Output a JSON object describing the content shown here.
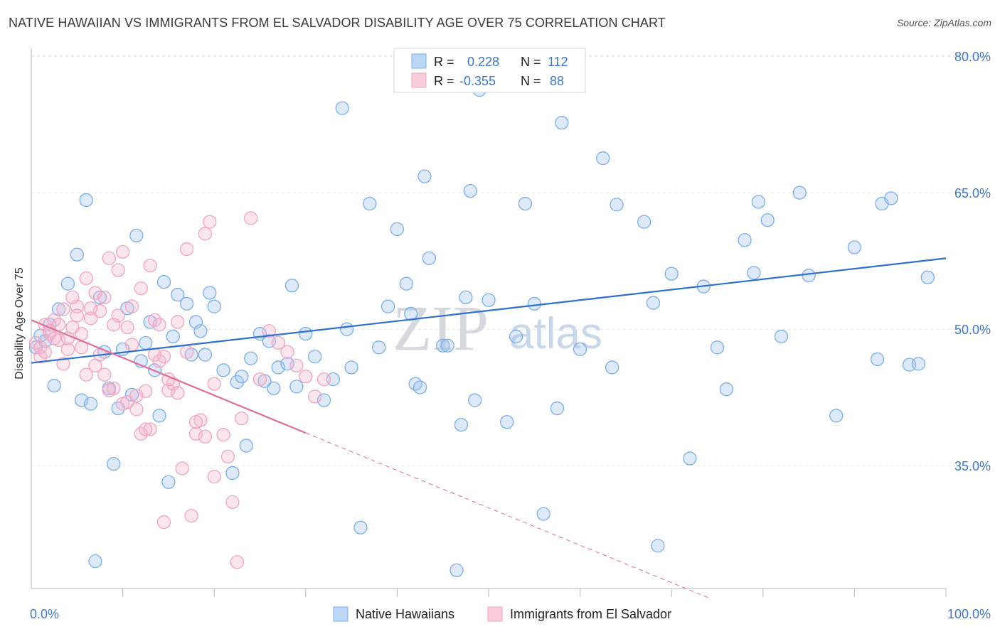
{
  "title": "NATIVE HAWAIIAN VS IMMIGRANTS FROM EL SALVADOR DISABILITY AGE OVER 75 CORRELATION CHART",
  "source": "Source: ZipAtlas.com",
  "watermark": {
    "zip": "ZIP",
    "atlas": "atlas"
  },
  "colors": {
    "blue": "#7aaee8",
    "pink": "#f2a3bf",
    "blue_line": "#2f6fce",
    "pink_line": "#e06c98",
    "axis_text": "#3f78c9",
    "grid": "#e3e6ea"
  },
  "legend_box": {
    "rows": [
      {
        "r_label": "R =",
        "r_value": "0.228",
        "n_label": "N =",
        "n_value": "112"
      },
      {
        "r_label": "R =",
        "r_value": "-0.355",
        "n_label": "N =",
        "n_value": "88"
      }
    ]
  },
  "bottom_legend": [
    "Native Hawaiians",
    "Immigrants from El Salvador"
  ],
  "chart_data": {
    "type": "scatter",
    "xlabel": "",
    "ylabel": "Disability Age Over 75",
    "xlim": [
      0,
      100
    ],
    "ylim": [
      21.5,
      81.5
    ],
    "y_ticks": [
      35.0,
      50.0,
      65.0,
      80.0
    ],
    "y_tick_labels": [
      "35.0%",
      "50.0%",
      "65.0%",
      "80.0%"
    ],
    "x_tick_labels": [
      "0.0%",
      "100.0%"
    ],
    "grid": true,
    "series": [
      {
        "name": "Native Hawaiians",
        "color": "#7aaee8",
        "trend": {
          "x": [
            0,
            100
          ],
          "y": [
            46.3,
            57.8
          ]
        },
        "x": [
          0.5,
          1.0,
          1.5,
          2.0,
          2.5,
          3.0,
          4.0,
          5.0,
          5.5,
          6.0,
          6.5,
          7.0,
          7.5,
          8.0,
          8.5,
          9.0,
          9.5,
          10.0,
          10.5,
          11.0,
          11.5,
          12.0,
          12.5,
          13.0,
          13.5,
          14.0,
          14.5,
          15.0,
          15.5,
          16.0,
          17.0,
          17.5,
          18.0,
          18.5,
          19.0,
          19.5,
          20.0,
          21.0,
          22.0,
          22.5,
          23.0,
          23.5,
          24.0,
          25.0,
          25.5,
          26.0,
          26.5,
          27.0,
          28.0,
          28.5,
          29.0,
          30.0,
          31.0,
          32.0,
          33.0,
          34.0,
          34.5,
          35.0,
          36.0,
          37.0,
          38.0,
          39.0,
          40.0,
          41.0,
          41.5,
          42.0,
          42.5,
          43.0,
          43.5,
          45.0,
          45.5,
          46.5,
          47.0,
          47.5,
          48.0,
          48.5,
          49.0,
          50.0,
          52.0,
          53.0,
          54.0,
          55.0,
          56.0,
          57.5,
          58.0,
          60.0,
          62.5,
          63.5,
          64.0,
          67.0,
          68.0,
          68.5,
          70.0,
          72.0,
          73.5,
          75.0,
          76.0,
          78.0,
          79.0,
          79.5,
          80.5,
          82.0,
          84.0,
          85.0,
          88.0,
          90.0,
          92.5,
          93.0,
          94.0,
          96.0,
          97.0,
          98.0
        ],
        "y": [
          48.0,
          49.3,
          48.7,
          50.5,
          43.8,
          52.2,
          55.0,
          58.2,
          42.2,
          64.2,
          41.8,
          24.5,
          53.5,
          47.5,
          43.5,
          35.2,
          41.3,
          47.8,
          52.3,
          42.8,
          60.3,
          46.5,
          48.5,
          50.8,
          45.5,
          40.5,
          55.2,
          33.2,
          49.2,
          53.8,
          52.8,
          47.2,
          50.8,
          49.8,
          47.2,
          54.0,
          52.5,
          45.5,
          34.2,
          44.2,
          44.8,
          37.2,
          46.8,
          49.5,
          44.3,
          48.7,
          43.5,
          45.8,
          46.2,
          54.8,
          43.7,
          49.5,
          47.0,
          42.2,
          44.5,
          74.3,
          50.0,
          45.8,
          28.2,
          63.8,
          48.0,
          52.5,
          61.0,
          55.0,
          51.7,
          44.0,
          43.6,
          66.8,
          57.8,
          48.2,
          48.2,
          23.5,
          39.5,
          53.5,
          65.2,
          42.2,
          76.3,
          53.2,
          39.8,
          49.2,
          63.8,
          52.8,
          29.7,
          41.3,
          72.7,
          47.8,
          68.8,
          45.8,
          63.7,
          61.8,
          52.9,
          26.2,
          56.1,
          35.8,
          54.7,
          48.0,
          43.4,
          59.8,
          56.2,
          64.0,
          62.0,
          49.2,
          65.0,
          55.9,
          40.5,
          59.0,
          46.7,
          63.8,
          64.4,
          46.1,
          46.2,
          55.7
        ]
      },
      {
        "name": "Immigrants from El Salvador",
        "color": "#f2a3bf",
        "trend": {
          "x": [
            0,
            30
          ],
          "y": [
            51.0,
            38.6
          ]
        },
        "trend_dashed": {
          "x": [
            30,
            74
          ],
          "y": [
            38.6,
            20.5
          ]
        },
        "x": [
          0.5,
          1.0,
          1.5,
          2.0,
          2.5,
          3.0,
          3.5,
          4.0,
          4.5,
          5.0,
          5.5,
          6.0,
          6.5,
          7.0,
          7.5,
          8.0,
          8.5,
          9.0,
          9.5,
          10.0,
          10.5,
          11.0,
          11.5,
          12.0,
          12.5,
          13.0,
          13.5,
          14.0,
          14.5,
          15.0,
          15.5,
          16.0,
          16.5,
          17.0,
          17.5,
          18.0,
          18.5,
          19.0,
          19.5,
          20.0,
          21.0,
          21.5,
          22.0,
          22.5,
          23.0,
          24.0,
          25.0,
          26.0,
          27.0,
          28.0,
          29.0,
          30.0,
          31.0,
          32.0,
          1.0,
          2.0,
          3.0,
          4.0,
          5.0,
          6.0,
          7.0,
          8.0,
          9.0,
          10.0,
          11.0,
          12.0,
          13.0,
          14.0,
          15.0,
          16.0,
          17.0,
          18.0,
          19.0,
          20.0,
          1.5,
          2.5,
          3.5,
          4.5,
          5.5,
          6.5,
          7.5,
          8.5,
          9.5,
          10.5,
          11.5,
          12.5,
          13.5,
          14.5
        ],
        "y": [
          48.5,
          47.0,
          50.5,
          49.5,
          51.0,
          48.8,
          52.2,
          47.8,
          50.2,
          52.5,
          49.5,
          55.6,
          51.2,
          54.0,
          52.0,
          45.0,
          57.8,
          50.5,
          56.5,
          58.5,
          50.2,
          52.5,
          41.2,
          38.5,
          43.2,
          39.0,
          51.0,
          46.5,
          47.0,
          43.3,
          44.0,
          50.8,
          34.7,
          58.8,
          29.5,
          38.5,
          40.0,
          38.2,
          61.8,
          44.0,
          38.4,
          36.0,
          31.0,
          24.4,
          40.2,
          62.2,
          44.5,
          49.8,
          48.5,
          47.5,
          46.0,
          44.8,
          42.6,
          44.5,
          48.0,
          49.8,
          50.5,
          49.0,
          51.5,
          45.0,
          46.0,
          53.5,
          43.5,
          41.8,
          48.3,
          54.5,
          57.0,
          50.5,
          44.5,
          43.0,
          47.5,
          39.8,
          60.5,
          33.8,
          47.5,
          49.0,
          46.2,
          53.5,
          48.0,
          52.3,
          47.2,
          43.3,
          51.5,
          42.0,
          42.7,
          39.0,
          47.2,
          28.8
        ]
      }
    ]
  }
}
